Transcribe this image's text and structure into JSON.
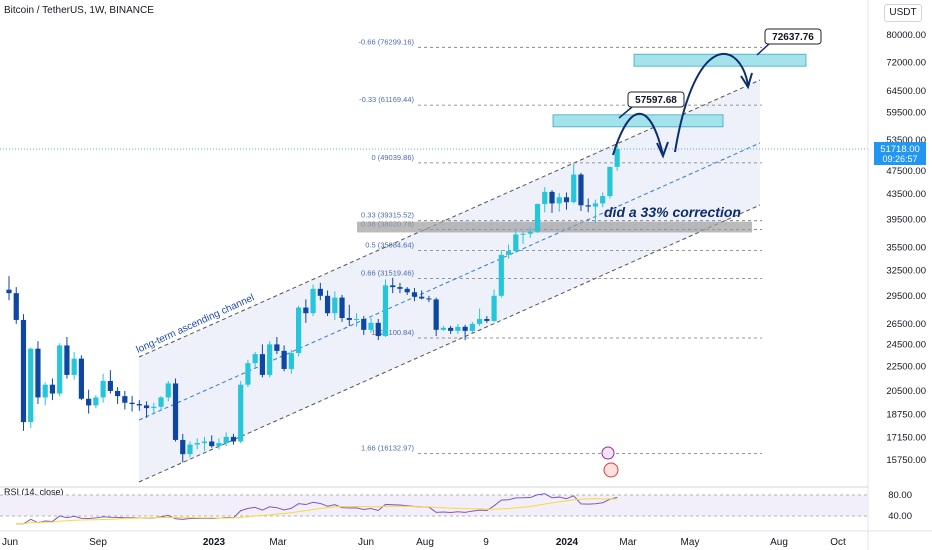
{
  "header": {
    "title": "Bitcoin / TetherUS, 1W, BINANCE",
    "currency": "USDT"
  },
  "colors": {
    "up": "#26c6da",
    "down": "#0d47a1",
    "channel_fill": "#eef0fa",
    "rsi_line": "#7e57c2",
    "rsi_ma": "#fdd835",
    "target_box": "#a5e3ec",
    "gray_box": "#9e9e9e",
    "annotation": "#0d2d6e",
    "last_price": "#2196f3"
  },
  "rsi": {
    "label": "RSI (14, close)",
    "levels": [
      "80.00",
      "40.00"
    ]
  },
  "chart_data": {
    "type": "candlestick",
    "y_scale": "log",
    "ylim": [
      14200,
      88000
    ],
    "y_ticks": [
      "80000.00",
      "72000.00",
      "64500.00",
      "59500.00",
      "53500.00",
      "47500.00",
      "43500.00",
      "39500.00",
      "35500.00",
      "32500.00",
      "29500.00",
      "26500.00",
      "24500.00",
      "22500.00",
      "20500.00",
      "18750.00",
      "17150.00",
      "15750.00"
    ],
    "x_ticks": [
      "Jun",
      "Sep",
      "2023",
      "Mar",
      "Jun",
      "Aug",
      "9",
      "2024",
      "Mar",
      "May",
      "Aug",
      "Oct"
    ],
    "ohlc": [
      [
        30200,
        31800,
        29000,
        29800
      ],
      [
        29800,
        30500,
        26500,
        26900
      ],
      [
        26900,
        27500,
        17600,
        18200
      ],
      [
        18200,
        24200,
        17800,
        24100
      ],
      [
        24100,
        24800,
        19500,
        20000
      ],
      [
        20000,
        21200,
        19400,
        21000
      ],
      [
        21000,
        21500,
        19800,
        20300
      ],
      [
        20300,
        24600,
        20100,
        24400
      ],
      [
        24400,
        25200,
        21500,
        21800
      ],
      [
        21800,
        23800,
        21400,
        23200
      ],
      [
        23200,
        23500,
        19800,
        19900
      ],
      [
        19900,
        20600,
        18800,
        19400
      ],
      [
        19400,
        20200,
        19200,
        20000
      ],
      [
        20000,
        21900,
        19600,
        21300
      ],
      [
        21300,
        22200,
        20300,
        20500
      ],
      [
        20500,
        20800,
        19500,
        20100
      ],
      [
        20100,
        20500,
        19100,
        19600
      ],
      [
        19600,
        20100,
        18950,
        19500
      ],
      [
        19500,
        19800,
        19000,
        19400
      ],
      [
        19400,
        19700,
        18500,
        19200
      ],
      [
        19200,
        19600,
        18800,
        19300
      ],
      [
        19300,
        20100,
        19000,
        20000
      ],
      [
        20000,
        21300,
        19700,
        21100
      ],
      [
        21100,
        21500,
        16900,
        17000
      ],
      [
        17000,
        17400,
        15600,
        16100
      ],
      [
        16100,
        16900,
        15900,
        16700
      ],
      [
        16700,
        17100,
        16400,
        16800
      ],
      [
        16800,
        17200,
        16300,
        16900
      ],
      [
        16900,
        17300,
        16500,
        16600
      ],
      [
        16600,
        17100,
        16400,
        16800
      ],
      [
        16800,
        17500,
        16600,
        17200
      ],
      [
        17200,
        17400,
        16700,
        16900
      ],
      [
        16900,
        21300,
        16800,
        21000
      ],
      [
        21000,
        23100,
        20800,
        22800
      ],
      [
        22800,
        23800,
        22400,
        23600
      ],
      [
        23600,
        24500,
        21600,
        21800
      ],
      [
        21800,
        24800,
        21600,
        24500
      ],
      [
        24500,
        25200,
        23600,
        23900
      ],
      [
        23900,
        24400,
        22100,
        22300
      ],
      [
        22300,
        24000,
        21900,
        23700
      ],
      [
        23700,
        28400,
        23400,
        28200
      ],
      [
        28200,
        29100,
        26600,
        27600
      ],
      [
        27600,
        30800,
        27300,
        30300
      ],
      [
        30300,
        31000,
        29000,
        29500
      ],
      [
        29500,
        30100,
        27300,
        27600
      ],
      [
        27600,
        30000,
        26900,
        29300
      ],
      [
        29300,
        29600,
        26700,
        27100
      ],
      [
        27100,
        28500,
        26300,
        26900
      ],
      [
        26900,
        27600,
        26200,
        27000
      ],
      [
        27000,
        27300,
        25400,
        25900
      ],
      [
        25900,
        27100,
        25600,
        26600
      ],
      [
        26600,
        27000,
        24900,
        25300
      ],
      [
        25300,
        31400,
        25200,
        30700
      ],
      [
        30700,
        31600,
        29800,
        30500
      ],
      [
        30500,
        31000,
        29800,
        30300
      ],
      [
        30300,
        30500,
        29600,
        29900
      ],
      [
        29900,
        30400,
        28900,
        29400
      ],
      [
        29400,
        30100,
        29100,
        29200
      ],
      [
        29200,
        29500,
        28800,
        29100
      ],
      [
        29100,
        29300,
        25300,
        25900
      ],
      [
        25900,
        26300,
        25800,
        26100
      ],
      [
        26100,
        26300,
        25500,
        25800
      ],
      [
        25800,
        26500,
        25500,
        26200
      ],
      [
        26200,
        26400,
        24900,
        25800
      ],
      [
        25800,
        26700,
        25600,
        26500
      ],
      [
        26500,
        28100,
        26300,
        27000
      ],
      [
        27000,
        27300,
        26600,
        26800
      ],
      [
        26800,
        30200,
        26700,
        29500
      ],
      [
        29500,
        35100,
        29300,
        34500
      ],
      [
        34500,
        35900,
        34000,
        35000
      ],
      [
        35000,
        37900,
        34800,
        37300
      ],
      [
        37300,
        37800,
        36000,
        37400
      ],
      [
        37400,
        38400,
        36800,
        37700
      ],
      [
        37700,
        42000,
        37500,
        41900
      ],
      [
        41900,
        44700,
        40600,
        43900
      ],
      [
        43900,
        44200,
        40500,
        42000
      ],
      [
        42000,
        43700,
        40700,
        43000
      ],
      [
        43000,
        43800,
        41000,
        42200
      ],
      [
        42200,
        48900,
        42000,
        46900
      ],
      [
        46900,
        47200,
        40800,
        41700
      ],
      [
        41700,
        42800,
        40600,
        41500
      ],
      [
        41500,
        42600,
        39000,
        42000
      ],
      [
        42000,
        43800,
        41400,
        43200
      ],
      [
        43200,
        48300,
        42800,
        48300
      ],
      [
        48300,
        52500,
        47600,
        51718
      ]
    ],
    "fib_levels": [
      {
        "label": "-0.66 (76299.16)",
        "value": 76299
      },
      {
        "label": "-0.33 (61169.44)",
        "value": 61169
      },
      {
        "label": "0 (49039.86)",
        "value": 49040
      },
      {
        "label": "0.33 (39315.52)",
        "value": 39316
      },
      {
        "label": "0.38 (38020.78)",
        "value": 38021
      },
      {
        "label": "0.5 (35084.64)",
        "value": 35085
      },
      {
        "label": "0.66 (31519.46)",
        "value": 31519
      },
      {
        "label": "1 (25100.84)",
        "value": 25101
      },
      {
        "label": "1.66 (16132.97)",
        "value": 16133
      }
    ],
    "targets": [
      {
        "label": "57597.68",
        "value": 57598
      },
      {
        "label": "72637.76",
        "value": 72638
      }
    ],
    "last_price": {
      "value": "51718.00",
      "countdown": "09:26:57",
      "price": 51718
    },
    "channel_label": "long-term ascending channel",
    "annotation": "did a 33% correction"
  }
}
